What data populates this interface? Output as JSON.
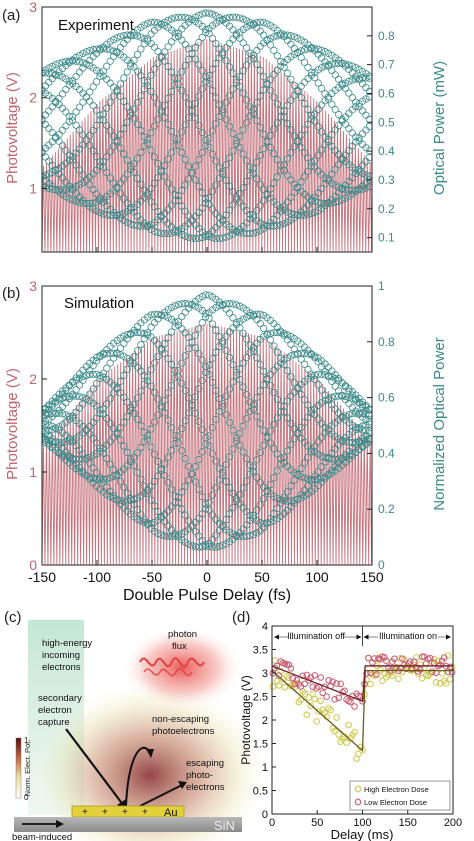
{
  "panels": {
    "a": {
      "label": "(a)",
      "title": "Experiment",
      "ylabel_left": "Photovoltage (V)",
      "ylabel_right": "Optical Power (mW)",
      "left_ticks": [
        "1",
        "2",
        "3"
      ],
      "right_ticks": [
        "0.1",
        "0.2",
        "0.3",
        "0.4",
        "0.5",
        "0.6",
        "0.7",
        "0.8"
      ]
    },
    "b": {
      "label": "(b)",
      "title": "Simulation",
      "ylabel_left": "Photovoltage (V)",
      "ylabel_right": "Normalized Optical Power",
      "left_ticks": [
        "0",
        "1",
        "2",
        "3"
      ],
      "right_ticks": [
        "0",
        "0.2",
        "0.4",
        "0.6",
        "0.8",
        "1"
      ],
      "x_ticks": [
        "-150",
        "-100",
        "-50",
        "0",
        "50",
        "100",
        "150"
      ],
      "xlabel": "Double Pulse Delay (fs)"
    },
    "c": {
      "label": "(c)",
      "text_high_energy": [
        "high-energy",
        "incoming",
        "electrons"
      ],
      "text_photon": [
        "photon",
        "flux"
      ],
      "text_secondary": [
        "secondary",
        "electron",
        "capture"
      ],
      "text_non_escaping": [
        "non-escaping",
        "photoelectrons"
      ],
      "text_escaping": [
        "escaping",
        "photo-",
        "electrons"
      ],
      "text_beam": [
        "beam-induced",
        "conductivity"
      ],
      "au_label": "Au",
      "sin_label": "SiN",
      "plus_signs": [
        "+",
        "+",
        "+",
        "+"
      ],
      "colorbar_label": "Norm. Elect. Pot.",
      "colorbar_max": "1",
      "colorbar_min": "0"
    },
    "d": {
      "label": "(d)",
      "illum_off": "Illumination off",
      "illum_on": "Illumination on",
      "ylabel": "Photovoltage (V)",
      "xlabel": "Delay (ms)",
      "y_ticks": [
        "0",
        "0.5",
        "1",
        "1.5",
        "2",
        "2.5",
        "3",
        "3.5",
        "4"
      ],
      "x_ticks": [
        "0",
        "50",
        "100",
        "150",
        "200"
      ],
      "legend": [
        "High Electron Dose",
        "Low Electron Dose"
      ]
    }
  },
  "colors": {
    "red": "#c0646e",
    "teal": "#3c8a8a",
    "yellow": "#cfc84a",
    "pink": "#c85a6e",
    "axis": "#222222"
  },
  "chart_data": [
    {
      "type": "line",
      "panel": "a",
      "title": "Experiment",
      "xlabel": "Double Pulse Delay (fs)",
      "ylabel": "Photovoltage (V)",
      "y2label": "Optical Power (mW)",
      "xlim": [
        -150,
        150
      ],
      "ylim": [
        0.3,
        3.0
      ],
      "y2lim": [
        0.05,
        0.9
      ],
      "series": [
        {
          "name": "Photovoltage",
          "fringe_period_fs": 2.7,
          "envelope_min": 0.3,
          "envelope_x": [
            -150,
            -100,
            -50,
            0,
            50,
            100,
            150
          ],
          "envelope_max": [
            1.25,
            1.95,
            2.45,
            2.65,
            2.45,
            1.95,
            1.25
          ]
        },
        {
          "name": "Optical Power",
          "marker": "circle",
          "envelope_x": [
            -150,
            -100,
            -50,
            0,
            50,
            100,
            150
          ],
          "upper": [
            0.68,
            0.76,
            0.85,
            0.88,
            0.85,
            0.76,
            0.66
          ],
          "lower": [
            0.28,
            0.19,
            0.12,
            0.09,
            0.12,
            0.19,
            0.28
          ]
        }
      ]
    },
    {
      "type": "line",
      "panel": "b",
      "title": "Simulation",
      "xlabel": "Double Pulse Delay (fs)",
      "ylabel": "Photovoltage (V)",
      "y2label": "Normalized Optical Power",
      "xlim": [
        -150,
        150
      ],
      "ylim": [
        0,
        3
      ],
      "y2lim": [
        0,
        1
      ],
      "series": [
        {
          "name": "Photovoltage",
          "fringe_period_fs": 2.7,
          "envelope_min": 0.0,
          "envelope_x": [
            -150,
            -100,
            -50,
            0,
            50,
            100,
            150
          ],
          "envelope_max": [
            1.3,
            2.0,
            2.45,
            2.6,
            2.45,
            2.0,
            1.3
          ]
        },
        {
          "name": "Normalized Optical Power",
          "marker": "circle",
          "envelope_x": [
            -150,
            -100,
            -50,
            0,
            50,
            100,
            150
          ],
          "upper": [
            0.55,
            0.75,
            0.9,
            0.97,
            0.9,
            0.75,
            0.55
          ],
          "lower": [
            0.45,
            0.28,
            0.12,
            0.05,
            0.12,
            0.28,
            0.45
          ]
        }
      ]
    },
    {
      "type": "scatter",
      "panel": "d",
      "xlabel": "Delay (ms)",
      "ylabel": "Photovoltage (V)",
      "xlim": [
        0,
        200
      ],
      "ylim": [
        0,
        4
      ],
      "series": [
        {
          "name": "High Electron Dose",
          "fit_x": [
            0,
            100,
            103,
            200
          ],
          "fit_y": [
            3.05,
            1.35,
            3.05,
            3.05
          ]
        },
        {
          "name": "Low Electron Dose",
          "fit_x": [
            0,
            100,
            103,
            200
          ],
          "fit_y": [
            3.15,
            2.4,
            3.15,
            3.15
          ]
        }
      ]
    }
  ]
}
